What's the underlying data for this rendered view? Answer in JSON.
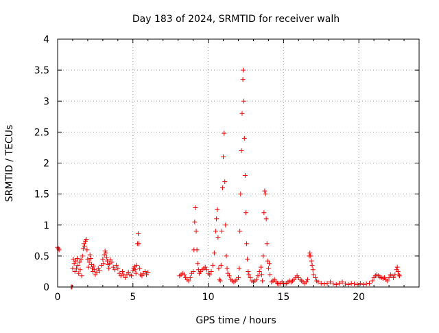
{
  "chart_data": {
    "type": "scatter",
    "title": "Day 183 of 2024, SRMTID for receiver walh",
    "xlabel": "GPS time / hours",
    "ylabel": "SRMTID / TECUs",
    "xlim": [
      0,
      24
    ],
    "ylim": [
      0,
      4
    ],
    "xticks": [
      0,
      5,
      10,
      15,
      20
    ],
    "yticks": [
      0,
      0.5,
      1,
      1.5,
      2,
      2.5,
      3,
      3.5,
      4
    ],
    "xtick_labels": [
      "0",
      "5",
      "10",
      "15",
      "20"
    ],
    "ytick_labels": [
      "0",
      "0.5",
      "1",
      "1.5",
      "2",
      "2.5",
      "3",
      "3.5",
      "4"
    ],
    "grid": true,
    "marker": "+",
    "series": [
      {
        "name": "SRMTID",
        "color": "#ee0000",
        "points": [
          [
            0.0,
            0.64
          ],
          [
            0.05,
            0.62
          ],
          [
            0.1,
            0.6
          ],
          [
            0.9,
            0.0
          ],
          [
            0.95,
            0.0
          ],
          [
            1.0,
            0.3
          ],
          [
            1.05,
            0.45
          ],
          [
            1.1,
            0.38
          ],
          [
            1.15,
            0.25
          ],
          [
            1.2,
            0.42
          ],
          [
            1.25,
            0.3
          ],
          [
            1.3,
            0.46
          ],
          [
            1.35,
            0.35
          ],
          [
            1.4,
            0.22
          ],
          [
            1.45,
            0.4
          ],
          [
            1.5,
            0.28
          ],
          [
            1.55,
            0.44
          ],
          [
            1.6,
            0.18
          ],
          [
            1.65,
            0.5
          ],
          [
            1.7,
            0.62
          ],
          [
            1.75,
            0.7
          ],
          [
            1.8,
            0.66
          ],
          [
            1.85,
            0.74
          ],
          [
            1.9,
            0.77
          ],
          [
            1.95,
            0.6
          ],
          [
            2.0,
            0.45
          ],
          [
            2.05,
            0.32
          ],
          [
            2.1,
            0.4
          ],
          [
            2.15,
            0.52
          ],
          [
            2.2,
            0.46
          ],
          [
            2.25,
            0.36
          ],
          [
            2.3,
            0.3
          ],
          [
            2.35,
            0.25
          ],
          [
            2.4,
            0.34
          ],
          [
            2.45,
            0.28
          ],
          [
            2.5,
            0.2
          ],
          [
            2.6,
            0.24
          ],
          [
            2.7,
            0.3
          ],
          [
            2.8,
            0.26
          ],
          [
            2.9,
            0.35
          ],
          [
            3.0,
            0.45
          ],
          [
            3.05,
            0.38
          ],
          [
            3.1,
            0.52
          ],
          [
            3.15,
            0.58
          ],
          [
            3.2,
            0.55
          ],
          [
            3.25,
            0.48
          ],
          [
            3.3,
            0.42
          ],
          [
            3.35,
            0.36
          ],
          [
            3.4,
            0.3
          ],
          [
            3.45,
            0.38
          ],
          [
            3.5,
            0.44
          ],
          [
            3.6,
            0.4
          ],
          [
            3.7,
            0.32
          ],
          [
            3.8,
            0.28
          ],
          [
            3.9,
            0.35
          ],
          [
            4.0,
            0.3
          ],
          [
            4.1,
            0.22
          ],
          [
            4.2,
            0.18
          ],
          [
            4.3,
            0.25
          ],
          [
            4.4,
            0.2
          ],
          [
            4.5,
            0.15
          ],
          [
            4.6,
            0.2
          ],
          [
            4.7,
            0.24
          ],
          [
            4.8,
            0.2
          ],
          [
            4.9,
            0.18
          ],
          [
            5.0,
            0.26
          ],
          [
            5.05,
            0.3
          ],
          [
            5.1,
            0.33
          ],
          [
            5.15,
            0.28
          ],
          [
            5.2,
            0.22
          ],
          [
            5.25,
            0.35
          ],
          [
            5.3,
            0.7
          ],
          [
            5.35,
            0.86
          ],
          [
            5.4,
            0.7
          ],
          [
            5.45,
            0.3
          ],
          [
            5.5,
            0.2
          ],
          [
            5.6,
            0.18
          ],
          [
            5.7,
            0.22
          ],
          [
            5.8,
            0.25
          ],
          [
            5.9,
            0.2
          ],
          [
            6.0,
            0.24
          ],
          [
            8.1,
            0.18
          ],
          [
            8.2,
            0.2
          ],
          [
            8.3,
            0.22
          ],
          [
            8.4,
            0.2
          ],
          [
            8.5,
            0.15
          ],
          [
            8.6,
            0.12
          ],
          [
            8.7,
            0.1
          ],
          [
            8.8,
            0.15
          ],
          [
            8.9,
            0.22
          ],
          [
            9.0,
            0.25
          ],
          [
            9.05,
            0.6
          ],
          [
            9.1,
            1.05
          ],
          [
            9.15,
            1.28
          ],
          [
            9.2,
            0.9
          ],
          [
            9.25,
            0.6
          ],
          [
            9.3,
            0.38
          ],
          [
            9.35,
            0.28
          ],
          [
            9.4,
            0.22
          ],
          [
            9.5,
            0.25
          ],
          [
            9.6,
            0.28
          ],
          [
            9.7,
            0.3
          ],
          [
            9.8,
            0.32
          ],
          [
            9.9,
            0.28
          ],
          [
            10.0,
            0.22
          ],
          [
            10.1,
            0.2
          ],
          [
            10.2,
            0.25
          ],
          [
            10.3,
            0.35
          ],
          [
            10.4,
            0.55
          ],
          [
            10.5,
            0.9
          ],
          [
            10.55,
            1.1
          ],
          [
            10.6,
            1.25
          ],
          [
            10.65,
            0.8
          ],
          [
            10.7,
            0.3
          ],
          [
            10.75,
            0.12
          ],
          [
            10.8,
            0.1
          ],
          [
            10.85,
            0.35
          ],
          [
            10.9,
            0.9
          ],
          [
            10.95,
            1.6
          ],
          [
            11.0,
            2.1
          ],
          [
            11.05,
            2.48
          ],
          [
            11.1,
            1.7
          ],
          [
            11.15,
            1.0
          ],
          [
            11.2,
            0.5
          ],
          [
            11.25,
            0.3
          ],
          [
            11.3,
            0.22
          ],
          [
            11.4,
            0.18
          ],
          [
            11.5,
            0.12
          ],
          [
            11.6,
            0.1
          ],
          [
            11.7,
            0.08
          ],
          [
            11.8,
            0.1
          ],
          [
            11.9,
            0.12
          ],
          [
            12.0,
            0.15
          ],
          [
            12.05,
            0.3
          ],
          [
            12.1,
            0.9
          ],
          [
            12.15,
            1.5
          ],
          [
            12.2,
            2.2
          ],
          [
            12.25,
            2.8
          ],
          [
            12.3,
            3.35
          ],
          [
            12.33,
            3.5
          ],
          [
            12.36,
            3.0
          ],
          [
            12.4,
            2.4
          ],
          [
            12.45,
            1.8
          ],
          [
            12.5,
            1.2
          ],
          [
            12.55,
            0.7
          ],
          [
            12.6,
            0.45
          ],
          [
            12.65,
            0.25
          ],
          [
            12.7,
            0.2
          ],
          [
            12.8,
            0.15
          ],
          [
            12.9,
            0.1
          ],
          [
            13.0,
            0.08
          ],
          [
            13.1,
            0.1
          ],
          [
            13.2,
            0.12
          ],
          [
            13.3,
            0.18
          ],
          [
            13.4,
            0.25
          ],
          [
            13.5,
            0.32
          ],
          [
            13.55,
            0.2
          ],
          [
            13.6,
            0.1
          ],
          [
            13.65,
            0.5
          ],
          [
            13.7,
            1.2
          ],
          [
            13.75,
            1.55
          ],
          [
            13.8,
            1.5
          ],
          [
            13.85,
            1.1
          ],
          [
            13.9,
            0.7
          ],
          [
            13.95,
            0.42
          ],
          [
            14.0,
            0.3
          ],
          [
            14.05,
            0.38
          ],
          [
            14.1,
            0.2
          ],
          [
            14.2,
            0.08
          ],
          [
            14.3,
            0.1
          ],
          [
            14.4,
            0.12
          ],
          [
            14.5,
            0.08
          ],
          [
            14.6,
            0.06
          ],
          [
            14.7,
            0.05
          ],
          [
            14.8,
            0.06
          ],
          [
            14.9,
            0.08
          ],
          [
            15.0,
            0.06
          ],
          [
            15.1,
            0.05
          ],
          [
            15.2,
            0.06
          ],
          [
            15.3,
            0.08
          ],
          [
            15.4,
            0.1
          ],
          [
            15.5,
            0.08
          ],
          [
            15.6,
            0.1
          ],
          [
            15.7,
            0.12
          ],
          [
            15.8,
            0.15
          ],
          [
            15.9,
            0.18
          ],
          [
            16.0,
            0.15
          ],
          [
            16.1,
            0.12
          ],
          [
            16.2,
            0.1
          ],
          [
            16.3,
            0.08
          ],
          [
            16.4,
            0.06
          ],
          [
            16.5,
            0.08
          ],
          [
            16.6,
            0.12
          ],
          [
            16.7,
            0.5
          ],
          [
            16.75,
            0.55
          ],
          [
            16.8,
            0.5
          ],
          [
            16.85,
            0.42
          ],
          [
            16.9,
            0.35
          ],
          [
            16.95,
            0.28
          ],
          [
            17.0,
            0.2
          ],
          [
            17.1,
            0.15
          ],
          [
            17.2,
            0.1
          ],
          [
            17.3,
            0.08
          ],
          [
            17.5,
            0.06
          ],
          [
            17.7,
            0.05
          ],
          [
            17.9,
            0.06
          ],
          [
            18.1,
            0.08
          ],
          [
            18.3,
            0.05
          ],
          [
            18.5,
            0.04
          ],
          [
            18.7,
            0.06
          ],
          [
            18.9,
            0.08
          ],
          [
            19.1,
            0.05
          ],
          [
            19.3,
            0.04
          ],
          [
            19.5,
            0.06
          ],
          [
            19.7,
            0.05
          ],
          [
            19.9,
            0.04
          ],
          [
            20.1,
            0.06
          ],
          [
            20.3,
            0.04
          ],
          [
            20.5,
            0.05
          ],
          [
            20.7,
            0.06
          ],
          [
            20.9,
            0.1
          ],
          [
            21.0,
            0.15
          ],
          [
            21.1,
            0.18
          ],
          [
            21.2,
            0.2
          ],
          [
            21.3,
            0.18
          ],
          [
            21.4,
            0.16
          ],
          [
            21.5,
            0.15
          ],
          [
            21.6,
            0.14
          ],
          [
            21.7,
            0.15
          ],
          [
            21.8,
            0.12
          ],
          [
            21.9,
            0.1
          ],
          [
            22.0,
            0.15
          ],
          [
            22.1,
            0.2
          ],
          [
            22.2,
            0.18
          ],
          [
            22.3,
            0.15
          ],
          [
            22.4,
            0.2
          ],
          [
            22.5,
            0.28
          ],
          [
            22.55,
            0.32
          ],
          [
            22.6,
            0.25
          ],
          [
            22.65,
            0.2
          ],
          [
            22.7,
            0.18
          ]
        ]
      }
    ]
  }
}
